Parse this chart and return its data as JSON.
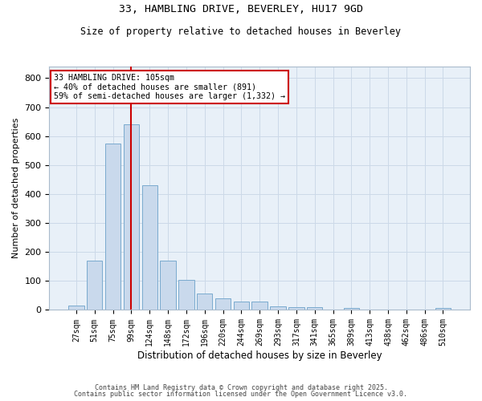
{
  "title1": "33, HAMBLING DRIVE, BEVERLEY, HU17 9GD",
  "title2": "Size of property relative to detached houses in Beverley",
  "xlabel": "Distribution of detached houses by size in Beverley",
  "ylabel": "Number of detached properties",
  "bar_labels": [
    "27sqm",
    "51sqm",
    "75sqm",
    "99sqm",
    "124sqm",
    "148sqm",
    "172sqm",
    "196sqm",
    "220sqm",
    "244sqm",
    "269sqm",
    "293sqm",
    "317sqm",
    "341sqm",
    "365sqm",
    "389sqm",
    "413sqm",
    "438sqm",
    "462sqm",
    "486sqm",
    "510sqm"
  ],
  "bar_values": [
    15,
    170,
    575,
    640,
    430,
    170,
    103,
    57,
    40,
    30,
    30,
    13,
    10,
    10,
    0,
    8,
    0,
    0,
    0,
    0,
    7
  ],
  "bar_color": "#c9d9ec",
  "bar_edgecolor": "#7aaace",
  "vline_color": "#cc0000",
  "annotation_text": "33 HAMBLING DRIVE: 105sqm\n← 40% of detached houses are smaller (891)\n59% of semi-detached houses are larger (1,332) →",
  "annotation_box_edgecolor": "#cc0000",
  "annotation_box_facecolor": "#ffffff",
  "ylim": [
    0,
    840
  ],
  "yticks": [
    0,
    100,
    200,
    300,
    400,
    500,
    600,
    700,
    800
  ],
  "grid_color": "#ccd9e8",
  "background_color": "#e8f0f8",
  "footer1": "Contains HM Land Registry data © Crown copyright and database right 2025.",
  "footer2": "Contains public sector information licensed under the Open Government Licence v3.0."
}
